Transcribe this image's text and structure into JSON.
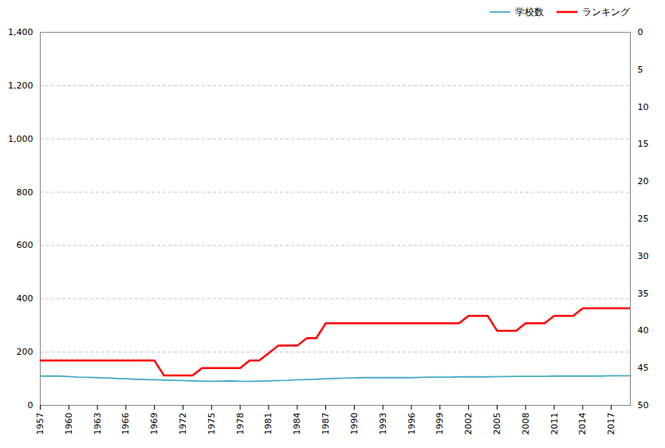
{
  "chart_data": {
    "type": "line",
    "x": [
      1957,
      1958,
      1959,
      1960,
      1961,
      1962,
      1963,
      1964,
      1965,
      1966,
      1967,
      1968,
      1969,
      1970,
      1971,
      1972,
      1973,
      1974,
      1975,
      1976,
      1977,
      1978,
      1979,
      1980,
      1981,
      1982,
      1983,
      1984,
      1985,
      1986,
      1987,
      1988,
      1989,
      1990,
      1991,
      1992,
      1993,
      1994,
      1995,
      1996,
      1997,
      1998,
      1999,
      2000,
      2001,
      2002,
      2003,
      2004,
      2005,
      2006,
      2007,
      2008,
      2009,
      2010,
      2011,
      2012,
      2013,
      2014,
      2015,
      2016,
      2017,
      2018,
      2019
    ],
    "series": [
      {
        "name": "学校数",
        "color": "#4BACC6",
        "values": [
          110,
          110,
          110,
          108,
          106,
          105,
          104,
          103,
          101,
          100,
          98,
          97,
          96,
          95,
          94,
          93,
          92,
          91,
          90,
          91,
          92,
          90,
          90,
          91,
          92,
          93,
          94,
          96,
          97,
          98,
          100,
          101,
          102,
          103,
          104,
          104,
          104,
          104,
          104,
          104,
          105,
          106,
          106,
          106,
          107,
          107,
          107,
          107,
          108,
          108,
          109,
          109,
          109,
          109,
          110,
          110,
          110,
          110,
          110,
          110,
          111,
          111,
          111
        ]
      },
      {
        "name": "ランキング",
        "color": "#FF0000",
        "axis": "y2",
        "values": [
          44,
          44,
          44,
          44,
          44,
          44,
          44,
          44,
          44,
          44,
          44,
          44,
          44,
          46,
          46,
          46,
          46,
          45,
          45,
          45,
          45,
          45,
          44,
          44,
          43,
          42,
          42,
          42,
          41,
          41,
          39,
          39,
          39,
          39,
          39,
          39,
          39,
          39,
          39,
          39,
          39,
          39,
          39,
          39,
          39,
          38,
          38,
          38,
          40,
          40,
          40,
          39,
          39,
          39,
          38,
          38,
          38,
          37,
          37,
          37,
          37,
          37,
          37
        ]
      }
    ],
    "xlim": [
      1957,
      2019
    ],
    "xticks": [
      1957,
      1960,
      1963,
      1966,
      1969,
      1972,
      1975,
      1978,
      1981,
      1984,
      1987,
      1990,
      1993,
      1996,
      1999,
      2002,
      2005,
      2008,
      2011,
      2014,
      2017
    ],
    "ylim": [
      0,
      1400
    ],
    "yticks": [
      0,
      200,
      400,
      600,
      800,
      {
        "value": 1000,
        "label": "1,000"
      },
      {
        "value": 1200,
        "label": "1,200"
      },
      {
        "value": 1400,
        "label": "1,400"
      }
    ],
    "y2lim": [
      50,
      0
    ],
    "y2ticks": [
      0,
      5,
      10,
      15,
      20,
      25,
      30,
      35,
      40,
      45,
      50
    ],
    "grid": true,
    "legend": "upper right"
  }
}
